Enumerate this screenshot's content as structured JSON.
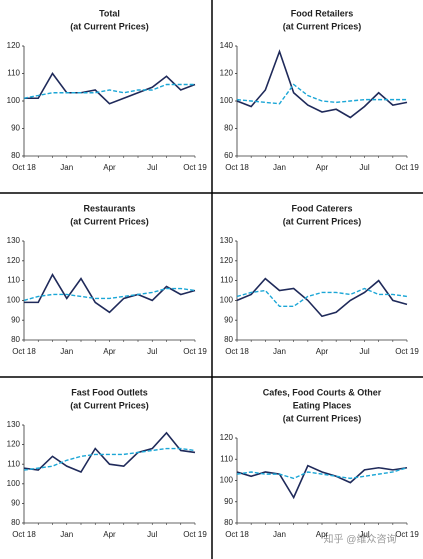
{
  "chart_data": [
    {
      "type": "line",
      "title": [
        "Total",
        "(at Current Prices)"
      ],
      "categories": [
        "Oct 18",
        null,
        null,
        "Jan",
        null,
        null,
        "Apr",
        null,
        null,
        "Jul",
        null,
        null,
        "Oct 19"
      ],
      "ylim": [
        80,
        120
      ],
      "yticks": [
        80,
        90,
        100,
        110,
        120
      ],
      "series": [
        {
          "color": "#1f2a5a",
          "style": "solid",
          "values": [
            101,
            101,
            110,
            103,
            103,
            104,
            99,
            101,
            103,
            105,
            109,
            104,
            106
          ]
        },
        {
          "color": "#1ba6d6",
          "style": "dashed",
          "values": [
            101,
            102,
            103,
            103,
            103,
            103,
            104,
            103,
            104,
            104,
            106,
            106,
            106
          ]
        }
      ]
    },
    {
      "type": "line",
      "title": [
        "Food Retailers",
        "(at Current Prices)"
      ],
      "categories": [
        "Oct 18",
        null,
        null,
        "Jan",
        null,
        null,
        "Apr",
        null,
        null,
        "Jul",
        null,
        null,
        "Oct 19"
      ],
      "ylim": [
        60,
        140
      ],
      "yticks": [
        60,
        80,
        100,
        120,
        140
      ],
      "series": [
        {
          "color": "#1f2a5a",
          "style": "solid",
          "values": [
            100,
            96,
            108,
            136,
            106,
            97,
            92,
            94,
            88,
            96,
            106,
            97,
            99
          ]
        },
        {
          "color": "#1ba6d6",
          "style": "dashed",
          "values": [
            101,
            100,
            99,
            98,
            112,
            104,
            100,
            99,
            100,
            101,
            101,
            101,
            101
          ]
        }
      ]
    },
    {
      "type": "line",
      "title": [
        "Restaurants",
        "(at Current Prices)"
      ],
      "categories": [
        "Oct 18",
        null,
        null,
        "Jan",
        null,
        null,
        "Apr",
        null,
        null,
        "Jul",
        null,
        null,
        "Oct 19"
      ],
      "ylim": [
        80,
        130
      ],
      "yticks": [
        80,
        90,
        100,
        110,
        120,
        130
      ],
      "series": [
        {
          "color": "#1f2a5a",
          "style": "solid",
          "values": [
            99,
            99,
            113,
            101,
            111,
            99,
            94,
            101,
            103,
            100,
            107,
            103,
            105
          ]
        },
        {
          "color": "#1ba6d6",
          "style": "dashed",
          "values": [
            100,
            102,
            103,
            103,
            102,
            101,
            101,
            102,
            103,
            104,
            106,
            106,
            105
          ]
        }
      ]
    },
    {
      "type": "line",
      "title": [
        "Food Caterers",
        "(at Current Prices)"
      ],
      "categories": [
        "Oct 18",
        null,
        null,
        "Jan",
        null,
        null,
        "Apr",
        null,
        null,
        "Jul",
        null,
        null,
        "Oct 19"
      ],
      "ylim": [
        80,
        130
      ],
      "yticks": [
        80,
        90,
        100,
        110,
        120,
        130
      ],
      "series": [
        {
          "color": "#1f2a5a",
          "style": "solid",
          "values": [
            100,
            103,
            111,
            105,
            106,
            100,
            92,
            94,
            100,
            104,
            110,
            100,
            98
          ]
        },
        {
          "color": "#1ba6d6",
          "style": "dashed",
          "values": [
            102,
            104,
            105,
            97,
            97,
            102,
            104,
            104,
            103,
            106,
            103,
            103,
            102
          ]
        }
      ]
    },
    {
      "type": "line",
      "title": [
        "Fast Food Outlets",
        "(at Current Prices)"
      ],
      "categories": [
        "Oct 18",
        null,
        null,
        "Jan",
        null,
        null,
        "Apr",
        null,
        null,
        "Jul",
        null,
        null,
        "Oct 19"
      ],
      "ylim": [
        80,
        130
      ],
      "yticks": [
        80,
        90,
        100,
        110,
        120,
        130
      ],
      "series": [
        {
          "color": "#1f2a5a",
          "style": "solid",
          "values": [
            108,
            107,
            114,
            109,
            106,
            118,
            110,
            109,
            116,
            118,
            126,
            117,
            116
          ]
        },
        {
          "color": "#1ba6d6",
          "style": "dashed",
          "values": [
            107,
            108,
            109,
            112,
            114,
            115,
            115,
            115,
            116,
            117,
            118,
            118,
            117
          ]
        }
      ]
    },
    {
      "type": "line",
      "title": [
        "Cafes, Food Courts & Other",
        "Eating Places",
        "(at Current Prices)"
      ],
      "categories": [
        "Oct 18",
        null,
        null,
        "Jan",
        null,
        null,
        "Apr",
        null,
        null,
        "Jul",
        null,
        null,
        "Oct 19"
      ],
      "ylim": [
        80,
        120
      ],
      "yticks": [
        80,
        90,
        100,
        110,
        120
      ],
      "series": [
        {
          "color": "#1f2a5a",
          "style": "solid",
          "values": [
            104,
            102,
            104,
            103,
            92,
            107,
            104,
            102,
            99,
            105,
            106,
            105,
            106
          ]
        },
        {
          "color": "#1ba6d6",
          "style": "dashed",
          "values": [
            103,
            104,
            103,
            103,
            101,
            104,
            103,
            102,
            101,
            102,
            103,
            104,
            106
          ]
        }
      ]
    }
  ],
  "watermark": "知乎 @维众咨询"
}
